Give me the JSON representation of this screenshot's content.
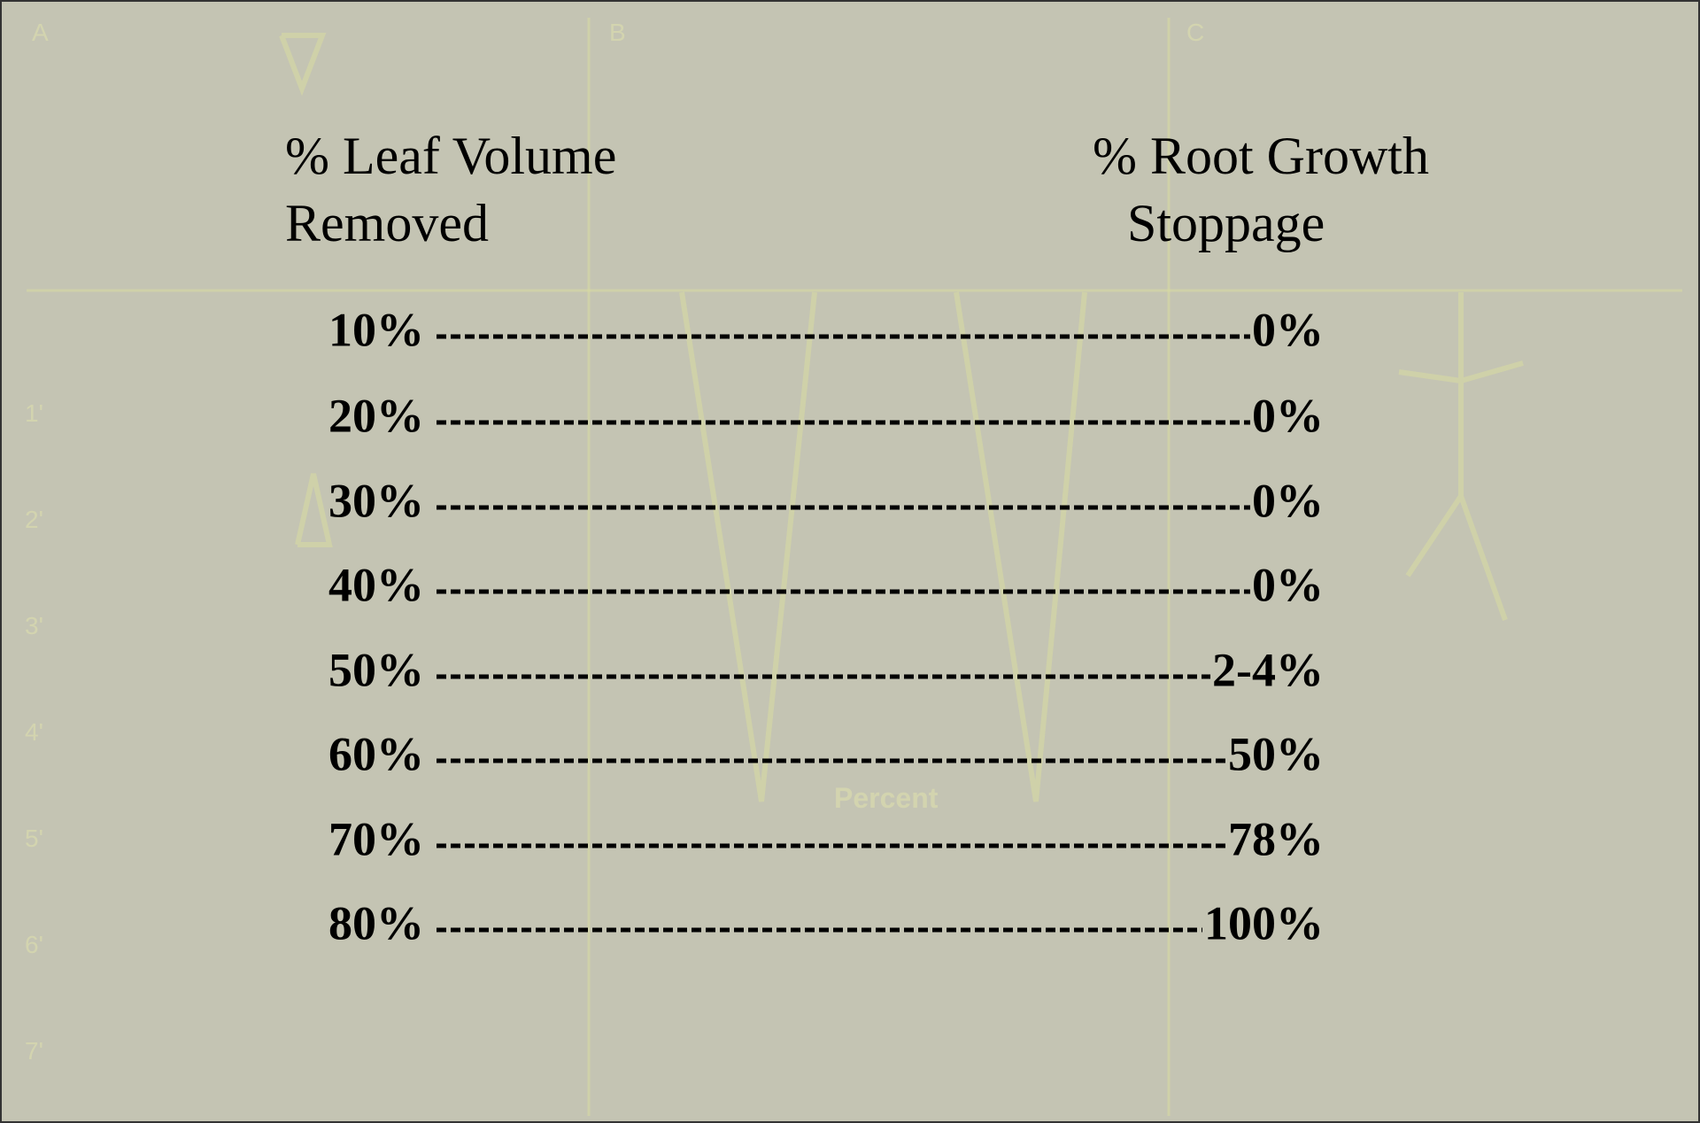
{
  "header": {
    "left": [
      "% Leaf Volume",
      "Removed"
    ],
    "right": [
      "% Root Growth",
      "Stoppage"
    ]
  },
  "rows": [
    {
      "leaf": "10%",
      "root": "0%"
    },
    {
      "leaf": "20%",
      "root": "0%"
    },
    {
      "leaf": "30%",
      "root": "0%"
    },
    {
      "leaf": "40%",
      "root": "0%"
    },
    {
      "leaf": "50%",
      "root": "2-4%"
    },
    {
      "leaf": "60%",
      "root": "50%"
    },
    {
      "leaf": "70%",
      "root": "78%"
    },
    {
      "leaf": "80%",
      "root": "100%"
    }
  ],
  "background": {
    "panels": [
      "A",
      "B",
      "C"
    ],
    "depths": [
      "1'",
      "2'",
      "3'",
      "4'",
      "5'",
      "6'",
      "7'"
    ],
    "caption": "Percent"
  }
}
